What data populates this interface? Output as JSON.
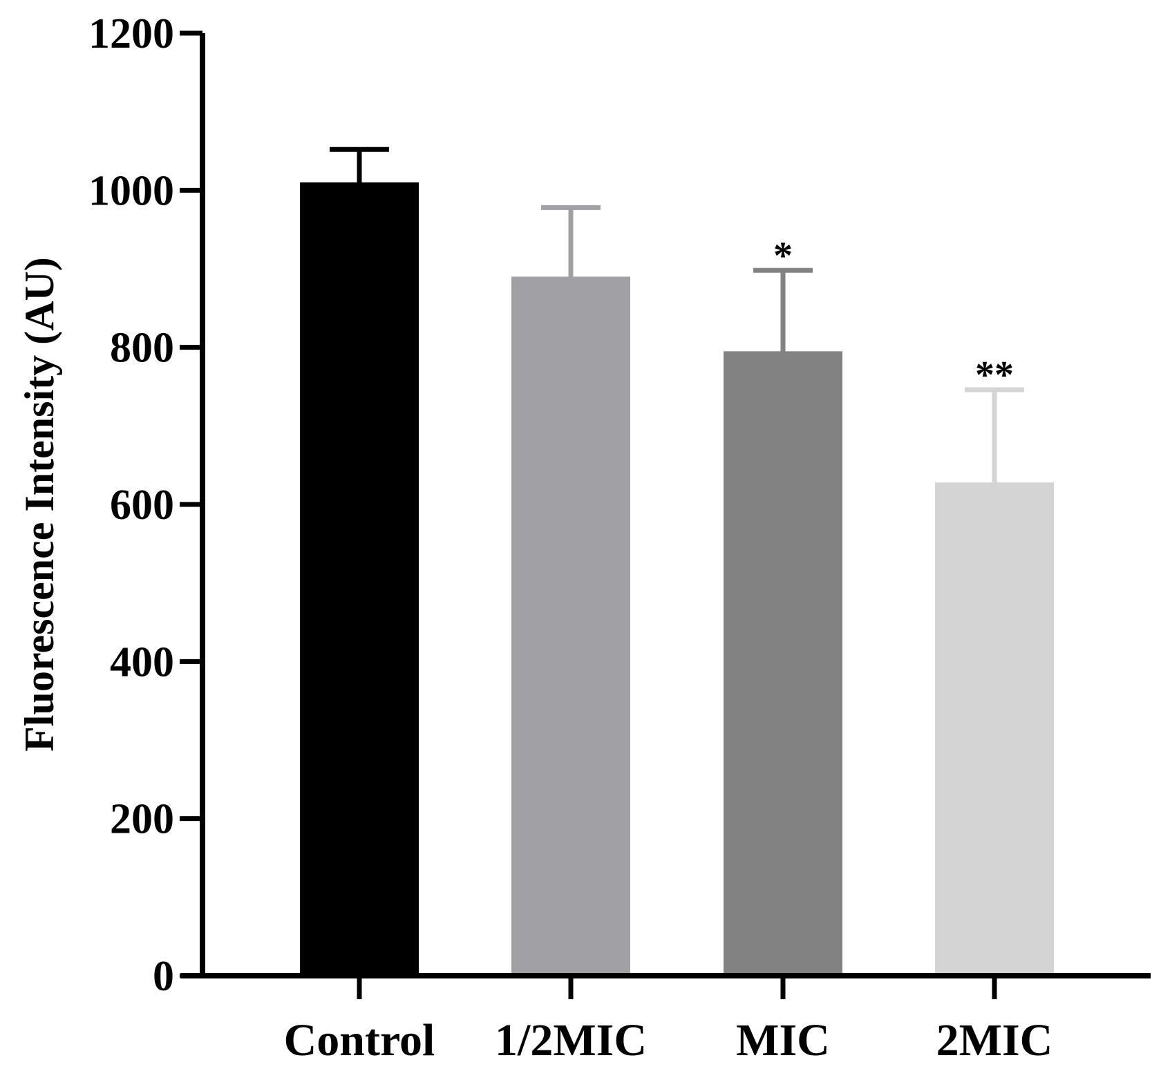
{
  "chart_data": {
    "type": "bar",
    "title": "",
    "xlabel": "",
    "ylabel": "Fluorescence Intensity (AU)",
    "categories": [
      "Control",
      "1/2MIC",
      "MIC",
      "2MIC"
    ],
    "values": [
      1010,
      890,
      795,
      628
    ],
    "errors": [
      42,
      88,
      103,
      118
    ],
    "significance": [
      "",
      "",
      "*",
      "**"
    ],
    "colors": [
      "#000000",
      "#a1a0a5",
      "#828282",
      "#d4d4d4"
    ],
    "ylim": [
      0,
      1200
    ],
    "yticks": [
      0,
      200,
      400,
      600,
      800,
      1000,
      1200
    ],
    "ytick_labels": [
      "0",
      "200",
      "400",
      "600",
      "800",
      "1000",
      "1200"
    ],
    "grid": false,
    "legend": "none"
  }
}
